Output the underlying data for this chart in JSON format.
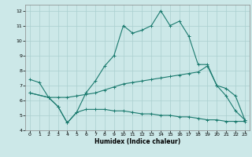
{
  "xlabel": "Humidex (Indice chaleur)",
  "bg_color": "#cce8e8",
  "grid_color": "#aacfcf",
  "line_color": "#1a7a6e",
  "xlim": [
    -0.5,
    23.5
  ],
  "ylim": [
    4,
    12.4
  ],
  "xticks": [
    0,
    1,
    2,
    3,
    4,
    5,
    6,
    7,
    8,
    9,
    10,
    11,
    12,
    13,
    14,
    15,
    16,
    17,
    18,
    19,
    20,
    21,
    22,
    23
  ],
  "yticks": [
    4,
    5,
    6,
    7,
    8,
    9,
    10,
    11,
    12
  ],
  "line1_x": [
    0,
    1,
    2,
    3,
    4,
    5,
    6,
    7,
    8,
    9,
    10,
    11,
    12,
    13,
    14,
    15,
    16,
    17,
    18,
    19,
    20,
    21,
    22,
    23
  ],
  "line1_y": [
    7.4,
    7.2,
    6.2,
    5.6,
    4.5,
    5.2,
    6.5,
    7.3,
    8.3,
    9.0,
    11.0,
    10.5,
    10.7,
    11.0,
    12.0,
    11.0,
    11.3,
    10.3,
    8.4,
    8.4,
    7.0,
    6.3,
    5.3,
    4.7
  ],
  "line2_x": [
    0,
    2,
    3,
    4,
    5,
    6,
    7,
    8,
    9,
    10,
    11,
    12,
    13,
    14,
    15,
    16,
    17,
    18,
    19,
    20,
    21,
    22,
    23
  ],
  "line2_y": [
    6.5,
    6.2,
    6.2,
    6.2,
    6.3,
    6.4,
    6.5,
    6.7,
    6.9,
    7.1,
    7.2,
    7.3,
    7.4,
    7.5,
    7.6,
    7.7,
    7.8,
    7.9,
    8.3,
    7.0,
    6.8,
    6.3,
    4.7
  ],
  "line3_x": [
    0,
    2,
    3,
    4,
    5,
    6,
    7,
    8,
    9,
    10,
    11,
    12,
    13,
    14,
    15,
    16,
    17,
    18,
    19,
    20,
    21,
    22,
    23
  ],
  "line3_y": [
    6.5,
    6.2,
    5.6,
    4.5,
    5.2,
    5.4,
    5.4,
    5.4,
    5.3,
    5.3,
    5.2,
    5.1,
    5.1,
    5.0,
    5.0,
    4.9,
    4.9,
    4.8,
    4.7,
    4.7,
    4.6,
    4.6,
    4.6
  ]
}
